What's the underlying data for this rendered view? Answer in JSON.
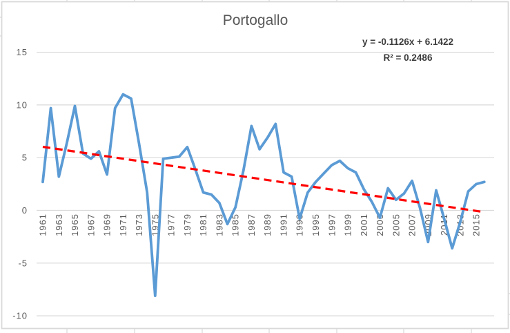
{
  "chart": {
    "title": "Portogallo",
    "trendline_label_line1": "y = -0.1126x + 6.1422",
    "trendline_label_line2": "R² = 0.2486"
  },
  "chart_data": {
    "type": "line",
    "title": "Portogallo",
    "x": [
      1961,
      1962,
      1963,
      1964,
      1965,
      1966,
      1967,
      1968,
      1969,
      1970,
      1971,
      1972,
      1973,
      1974,
      1975,
      1976,
      1977,
      1978,
      1979,
      1980,
      1981,
      1982,
      1983,
      1984,
      1985,
      1986,
      1987,
      1988,
      1989,
      1990,
      1991,
      1992,
      1993,
      1994,
      1995,
      1996,
      1997,
      1998,
      1999,
      2000,
      2001,
      2002,
      2003,
      2004,
      2005,
      2006,
      2007,
      2008,
      2009,
      2010,
      2011,
      2012,
      2013,
      2014,
      2015,
      2016
    ],
    "series": [
      {
        "name": "Portogallo",
        "color": "#5B9BD5",
        "values": [
          2.7,
          9.7,
          3.2,
          6.4,
          9.9,
          5.4,
          4.9,
          5.6,
          3.4,
          9.7,
          11.0,
          10.6,
          6.3,
          1.7,
          -8.1,
          4.9,
          5.0,
          5.1,
          6.0,
          3.9,
          1.7,
          1.5,
          0.7,
          -1.3,
          0.3,
          3.8,
          8.0,
          5.8,
          6.9,
          8.2,
          3.6,
          3.2,
          -0.8,
          1.7,
          2.7,
          3.5,
          4.3,
          4.7,
          4.0,
          3.6,
          2.0,
          0.8,
          -0.7,
          2.1,
          1.0,
          1.6,
          2.8,
          0.2,
          -3.0,
          1.9,
          -0.8,
          -3.6,
          -1.1,
          1.8,
          2.5,
          2.7
        ]
      }
    ],
    "trendline": {
      "type": "linear",
      "slope": -0.1126,
      "intercept": 6.1422,
      "equation": "y = -0.1126x + 6.1422",
      "r_squared": "R² = 0.2486",
      "color": "#FF0000",
      "dashed": true
    },
    "ylim": [
      -10,
      15
    ],
    "yticks": [
      15,
      10,
      5,
      0,
      -5,
      -10
    ],
    "xtick_labels": [
      "1961",
      "1963",
      "1965",
      "1967",
      "1969",
      "1971",
      "1973",
      "1975",
      "1977",
      "1979",
      "1981",
      "1983",
      "1985",
      "1987",
      "1989",
      "1991",
      "1993",
      "1995",
      "1997",
      "1999",
      "2001",
      "2003",
      "2005",
      "2007",
      "2009",
      "2011",
      "2013",
      "2015"
    ],
    "xtick_rotation_deg": -90,
    "grid": true,
    "legend": "none",
    "colors": {
      "gridline": "#D9D9D9",
      "border": "#D9D9D9",
      "axis_text": "#595959",
      "title_text": "#595959",
      "equation_text": "#3B3B3B",
      "background": "#FFFFFF"
    }
  }
}
